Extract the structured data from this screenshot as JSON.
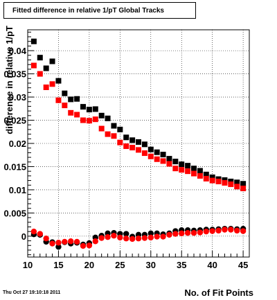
{
  "chart_data": {
    "type": "scatter",
    "title": "Fitted difference in relative 1/pT  Global Tracks",
    "xlabel": "No. of Fit Points",
    "ylabel": "difference in relative 1/pT",
    "xlim": [
      10,
      46
    ],
    "ylim": [
      -0.0045,
      0.0445
    ],
    "grid": true,
    "x_ticks": [
      "10",
      "15",
      "20",
      "25",
      "30",
      "35",
      "40",
      "45"
    ],
    "y_ticks": [
      "0",
      "0.005",
      "0.01",
      "0.015",
      "0.02",
      "0.025",
      "0.03",
      "0.035",
      "0.04"
    ],
    "x": [
      11,
      12,
      13,
      14,
      15,
      16,
      17,
      18,
      19,
      20,
      21,
      22,
      23,
      24,
      25,
      26,
      27,
      28,
      29,
      30,
      31,
      32,
      33,
      34,
      35,
      36,
      37,
      38,
      39,
      40,
      41,
      42,
      43,
      44,
      45
    ],
    "series": [
      {
        "color": "#000000",
        "values": [
          0.042,
          0.0385,
          0.0362,
          0.0377,
          0.0335,
          0.0308,
          0.0295,
          0.0296,
          0.0279,
          0.0273,
          0.0274,
          0.026,
          0.0254,
          0.0238,
          0.023,
          0.0213,
          0.0207,
          0.0203,
          0.0198,
          0.0187,
          0.0181,
          0.0176,
          0.0167,
          0.0161,
          0.0155,
          0.0152,
          0.0146,
          0.0141,
          0.0133,
          0.0127,
          0.0123,
          0.0121,
          0.0118,
          0.0116,
          0.0113
        ]
      },
      {
        "color": "#ff0000",
        "values": [
          0.0368,
          0.035,
          0.0321,
          0.0328,
          0.0293,
          0.0282,
          0.0266,
          0.0262,
          0.025,
          0.0249,
          0.0252,
          0.0232,
          0.022,
          0.0216,
          0.0202,
          0.0194,
          0.0191,
          0.0186,
          0.0179,
          0.0172,
          0.0166,
          0.0162,
          0.0156,
          0.0146,
          0.0143,
          0.014,
          0.0135,
          0.013,
          0.0124,
          0.012,
          0.0118,
          0.0115,
          0.0112,
          0.0107,
          0.0103
        ]
      },
      {
        "color": "#000000",
        "values": [
          0.0004,
          0.0003,
          -0.0012,
          -0.0013,
          -0.0023,
          -0.0013,
          -0.0016,
          -0.0014,
          -0.0018,
          -0.0015,
          -0.0003,
          0.0001,
          0.0006,
          0.0007,
          0.0005,
          0.0005,
          -0.0001,
          0.0003,
          0.0003,
          0.0006,
          0.0006,
          0.0004,
          0.0006,
          0.0011,
          0.0013,
          0.0013,
          0.0012,
          0.0013,
          0.0014,
          0.0014,
          0.0015,
          0.0016,
          0.0016,
          0.0015,
          0.0016
        ]
      },
      {
        "color": "#ff0000",
        "values": [
          0.001,
          0.0005,
          -0.0005,
          -0.0016,
          -0.0014,
          -0.0012,
          -0.0011,
          -0.0012,
          -0.0021,
          -0.002,
          -0.0011,
          -0.0004,
          -0.0002,
          0.0001,
          -0.0003,
          -0.0005,
          -0.0006,
          -0.0005,
          -0.0004,
          -0.0003,
          -0.0001,
          -0.0001,
          0.0003,
          0.0005,
          0.0006,
          0.0007,
          0.0007,
          0.0008,
          0.001,
          0.0011,
          0.0012,
          0.0014,
          0.0014,
          0.0012,
          0.0011
        ]
      }
    ]
  },
  "footer": {
    "timestamp": "Thu Oct 27 19:10:18 2011"
  }
}
